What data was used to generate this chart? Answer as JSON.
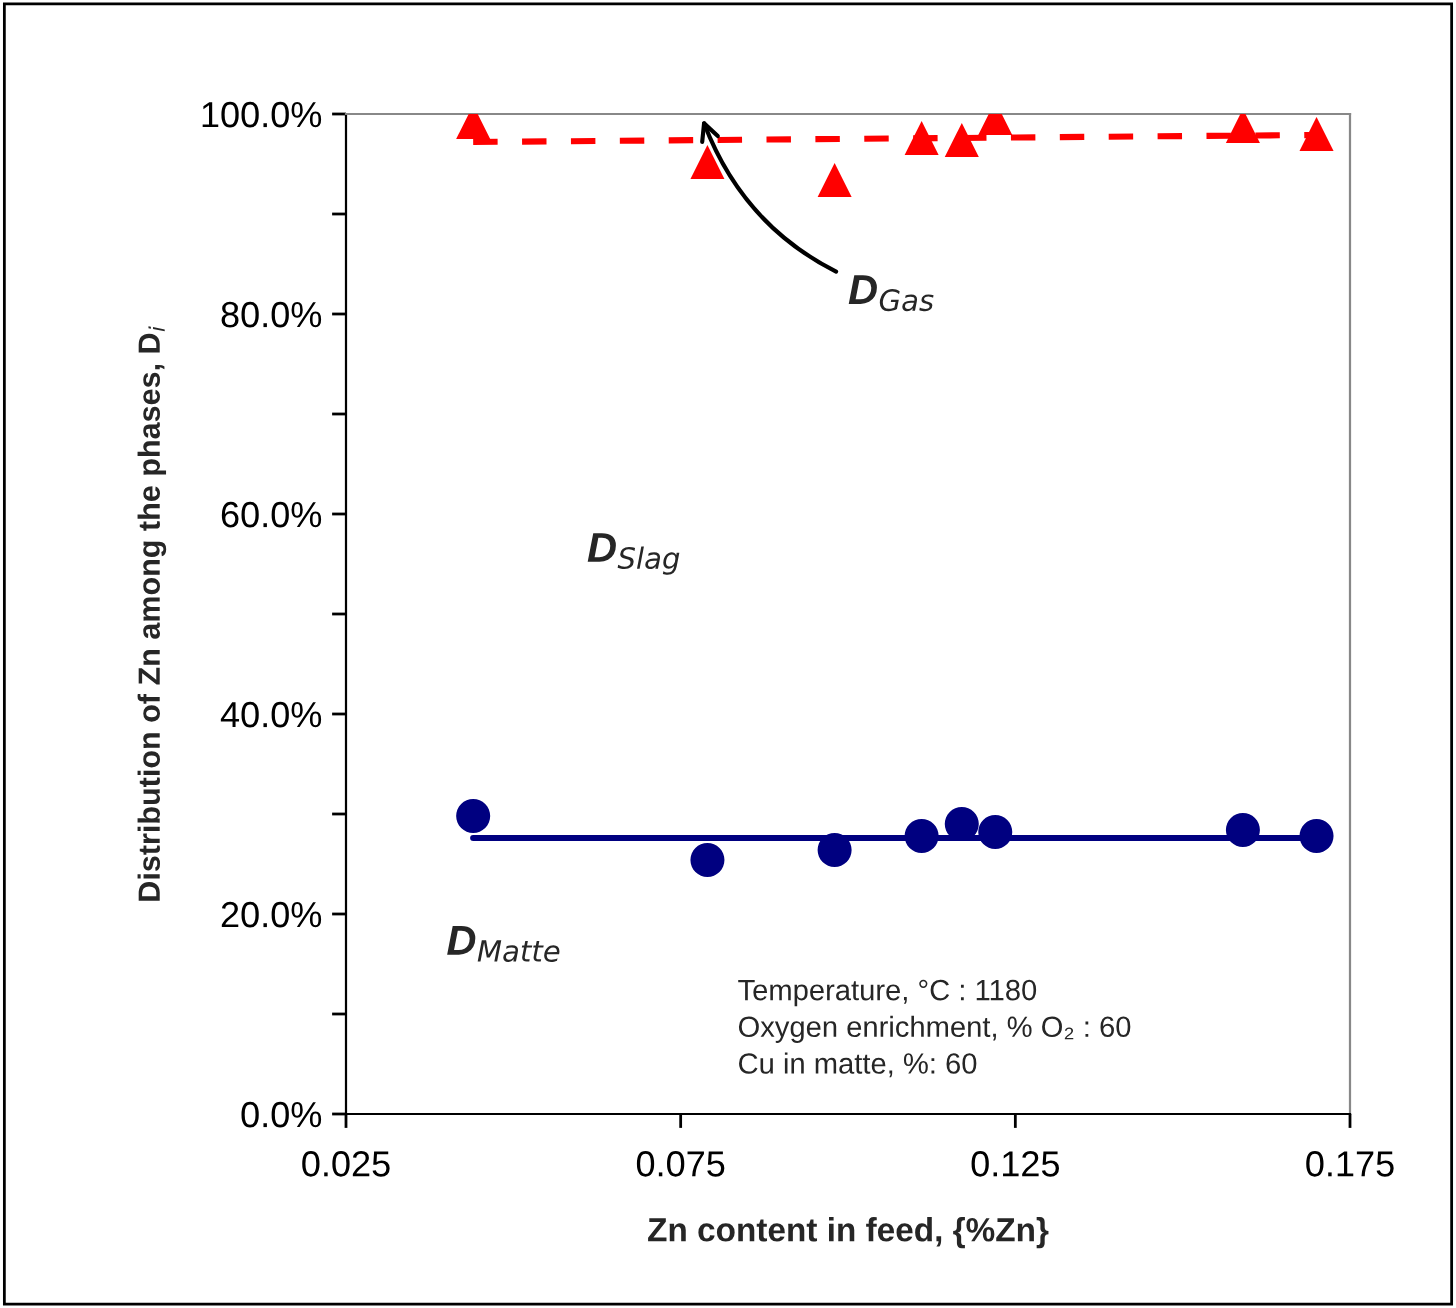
{
  "chart_data": {
    "type": "scatter",
    "xlabel": "Zn content in feed, {%Zn}",
    "ylabel": "Distribution of Zn among the phases, D$_{i}$",
    "xlim": [
      0.025,
      0.175
    ],
    "xticks": [
      0.025,
      0.075,
      0.125,
      0.175
    ],
    "ylim": [
      0,
      100
    ],
    "yticks": [
      {
        "value": 0,
        "label": "0.0%"
      },
      {
        "value": 10,
        "label": null
      },
      {
        "value": 20,
        "label": "20.0%"
      },
      {
        "value": 30,
        "label": null
      },
      {
        "value": 40,
        "label": "40.0%"
      },
      {
        "value": 50,
        "label": null
      },
      {
        "value": 60,
        "label": "60.0%"
      },
      {
        "value": 70,
        "label": null
      },
      {
        "value": 80,
        "label": "80.0%"
      },
      {
        "value": 90,
        "label": null
      },
      {
        "value": 100,
        "label": "100.0%"
      }
    ],
    "grid": false,
    "series": [
      {
        "marker": "triangle",
        "color": "#ff0000",
        "x": [
          0.044,
          0.079,
          0.098,
          0.111,
          0.117,
          0.122,
          0.159,
          0.17
        ],
        "values": [
          99.2,
          95.2,
          93.4,
          97.6,
          97.4,
          99.6,
          98.8,
          98.0
        ]
      },
      {
        "type": "line",
        "line_style": "dashed",
        "color": "#ff0000",
        "x": [
          0.044,
          0.17
        ],
        "values": [
          97.2,
          97.9
        ]
      },
      {
        "marker": "circle",
        "color": "#000080",
        "x": [
          0.044,
          0.079,
          0.098,
          0.111,
          0.117,
          0.122,
          0.159,
          0.17
        ],
        "values": [
          29.8,
          25.4,
          26.4,
          27.8,
          29.0,
          28.2,
          28.4,
          27.8
        ]
      },
      {
        "type": "line",
        "line_style": "solid",
        "color": "#000080",
        "x": [
          0.044,
          0.17
        ],
        "values": [
          27.6,
          27.6
        ]
      }
    ],
    "annotations": [
      "D$_{Gas}$",
      "D$_{Slag}$",
      "D$_{Matte}$",
      "Temperature, °C : 1180\nOxygen enrichment, % O₂ : 60\nCu in matte, %: 60"
    ]
  }
}
